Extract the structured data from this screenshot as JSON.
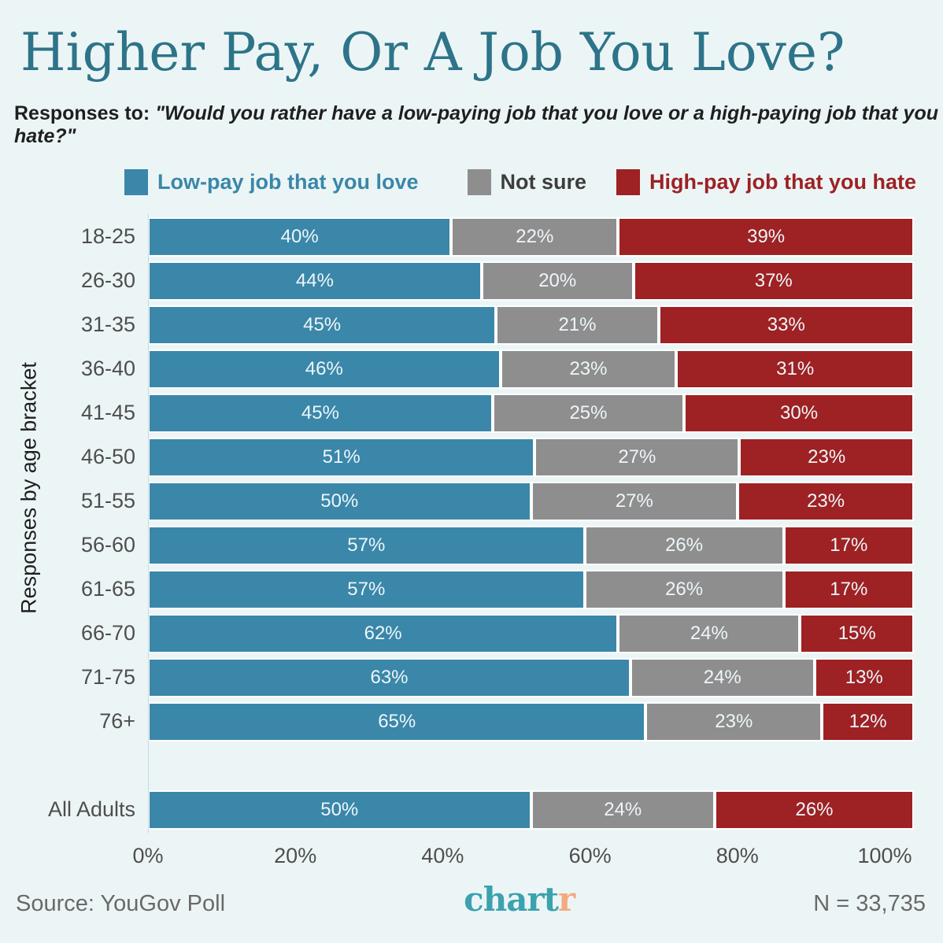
{
  "title": "Higher Pay, Or A Job You Love?",
  "subtitle_prefix": "Responses to: ",
  "subtitle_quote": "\"Would you rather have a low-paying job that you love or a high-paying job that you hate?\"",
  "ylabel": "Responses by age bracket",
  "legend": [
    {
      "label": "Low-pay job that you love",
      "swatch": "#3a87a9",
      "text_color": "#3a87a9"
    },
    {
      "label": "Not sure",
      "swatch": "#8e8e8e",
      "text_color": "#3d3d3d"
    },
    {
      "label": "High-pay job that you hate",
      "swatch": "#9e2123",
      "text_color": "#9e2123"
    }
  ],
  "chart_data": {
    "type": "bar",
    "orientation": "horizontal",
    "stacked": true,
    "normalized_to_100": true,
    "grid": false,
    "legend_position": "top",
    "categories": [
      "18-25",
      "26-30",
      "31-35",
      "36-40",
      "41-45",
      "46-50",
      "51-55",
      "56-60",
      "61-65",
      "66-70",
      "71-75",
      "76+",
      "All Adults"
    ],
    "series": [
      {
        "name": "Low-pay job that you love",
        "color": "#3a87a9",
        "values": [
          40,
          44,
          45,
          46,
          45,
          51,
          50,
          57,
          57,
          62,
          63,
          65,
          50
        ]
      },
      {
        "name": "Not sure",
        "color": "#8e8e8e",
        "values": [
          22,
          20,
          21,
          23,
          25,
          27,
          27,
          26,
          26,
          24,
          24,
          23,
          24
        ]
      },
      {
        "name": "High-pay job that you hate",
        "color": "#9e2123",
        "values": [
          39,
          37,
          33,
          31,
          30,
          23,
          23,
          17,
          17,
          15,
          13,
          12,
          26
        ]
      }
    ],
    "value_suffix": "%",
    "xlabel": "",
    "ylabel": "Responses by age bracket",
    "xlim": [
      0,
      100
    ],
    "x_ticks": [
      "0%",
      "20%",
      "40%",
      "60%",
      "80%",
      "100%"
    ]
  },
  "footer": {
    "source": "Source: YouGov Poll",
    "logo_chart": "chart",
    "logo_r": "r",
    "n": "N = 33,735"
  }
}
